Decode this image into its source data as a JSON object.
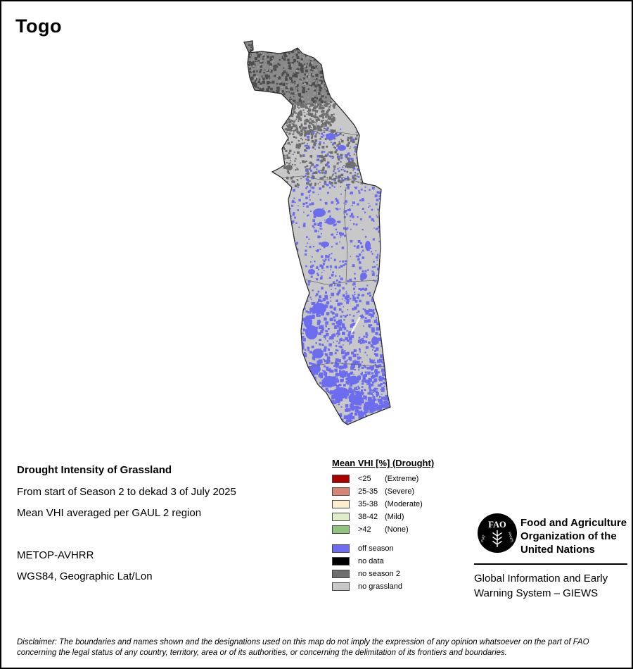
{
  "page": {
    "title": "Togo"
  },
  "map": {
    "colors": {
      "off_season": "#6c6cee",
      "no_data": "#000000",
      "no_season_2": "#6e6e6e",
      "no_grassland": "#c8c8c8",
      "north_base": "#8a8a8a",
      "north_speckle_dark": "#4d4d4d",
      "north_speckle_light": "#9e9e9e",
      "border": "#696969",
      "outline": "#2b2b2b"
    }
  },
  "info": {
    "heading": "Drought Intensity of Grassland",
    "period": "From start of Season 2 to dekad 3 of July 2025",
    "aggregation": "Mean VHI averaged per GAUL 2 region",
    "sensor": "METOP-AVHRR",
    "projection": "WGS84, Geographic Lat/Lon"
  },
  "legend": {
    "title": "Mean VHI [%] (Drought)",
    "drought_classes": [
      {
        "color": "#ab0000",
        "value": "<25",
        "label": "(Extreme)"
      },
      {
        "color": "#d98576",
        "value": "25-35",
        "label": "(Severe)"
      },
      {
        "color": "#fdeccd",
        "value": "35-38",
        "label": "(Moderate)"
      },
      {
        "color": "#ddeec9",
        "value": "38-42",
        "label": "(Mild)"
      },
      {
        "color": "#90c47e",
        "value": ">42",
        "label": "(None)"
      }
    ],
    "other_classes": [
      {
        "color": "#6c6cee",
        "label": "off season"
      },
      {
        "color": "#000000",
        "label": "no data"
      },
      {
        "color": "#6e6e6e",
        "label": "no season 2"
      },
      {
        "color": "#c8c8c8",
        "label": "no grassland"
      }
    ]
  },
  "org": {
    "logo_letters": "FAO",
    "motto_1": "FIAT",
    "motto_2": "PANIS",
    "name_lines": [
      "Food and Agriculture",
      "Organization of the",
      "United Nations"
    ],
    "giews_lines": [
      "Global Information and Early",
      "Warning System – GIEWS"
    ]
  },
  "disclaimer": "Disclaimer: The boundaries and names shown and the designations used on this map do not imply the expression of any opinion whatsoever on the part of FAO concerning the legal status of any country, territory, area or of its authorities, or concerning the delimitation of its frontiers and boundaries."
}
